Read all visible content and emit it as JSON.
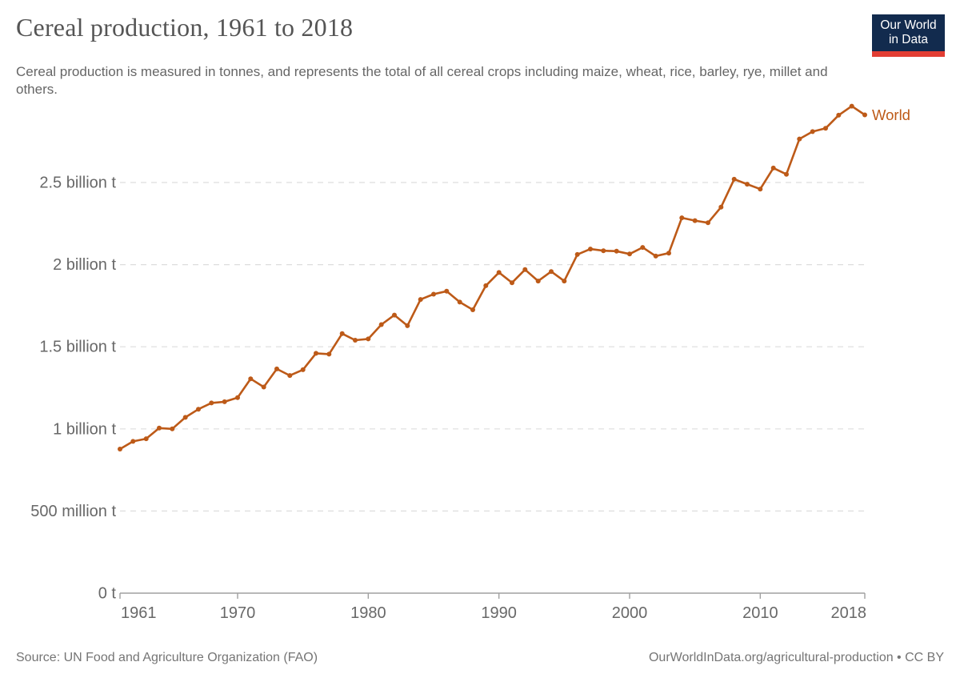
{
  "header": {
    "title": "Cereal production, 1961 to 2018",
    "subtitle": "Cereal production is measured in tonnes, and represents the total of all cereal crops including maize, wheat, rice, barley, rye, millet and others.",
    "logo": {
      "line1": "Our World",
      "line2": "in Data"
    }
  },
  "colors": {
    "line": "#bd5a18",
    "grid": "#dddddd",
    "axis": "#a0a0a0",
    "tick_label": "#686868",
    "logo_navy": "#122b4e",
    "logo_red": "#e23d33"
  },
  "chart_data": {
    "type": "line",
    "title": "Cereal production, 1961 to 2018",
    "value_unit": "million tonnes",
    "xlabel": "",
    "ylabel": "",
    "grid": true,
    "legend_position": "line-end",
    "xlim": [
      1961,
      2018
    ],
    "ylim": [
      0,
      2500
    ],
    "x_ticks": [
      1961,
      1970,
      1980,
      1990,
      2000,
      2010,
      2018
    ],
    "y_ticks": [
      {
        "value": 0,
        "label": "0 t"
      },
      {
        "value": 500,
        "label": "500 million t"
      },
      {
        "value": 1000,
        "label": "1 billion t"
      },
      {
        "value": 1500,
        "label": "1.5 billion t"
      },
      {
        "value": 2000,
        "label": "2 billion t"
      },
      {
        "value": 2500,
        "label": "2.5 billion t"
      }
    ],
    "series": [
      {
        "name": "World",
        "color": "#bd5a18",
        "x": [
          1961,
          1962,
          1963,
          1964,
          1965,
          1966,
          1967,
          1968,
          1969,
          1970,
          1971,
          1972,
          1973,
          1974,
          1975,
          1976,
          1977,
          1978,
          1979,
          1980,
          1981,
          1982,
          1983,
          1984,
          1985,
          1986,
          1987,
          1988,
          1989,
          1990,
          1991,
          1992,
          1993,
          1994,
          1995,
          1996,
          1997,
          1998,
          1999,
          2000,
          2001,
          2002,
          2003,
          2004,
          2005,
          2006,
          2007,
          2008,
          2009,
          2010,
          2011,
          2012,
          2013,
          2014,
          2015,
          2016,
          2017,
          2018
        ],
        "values": [
          877,
          924,
          940,
          1005,
          1000,
          1070,
          1120,
          1158,
          1165,
          1190,
          1305,
          1255,
          1365,
          1325,
          1360,
          1460,
          1455,
          1580,
          1540,
          1548,
          1635,
          1693,
          1628,
          1788,
          1820,
          1838,
          1772,
          1725,
          1872,
          1952,
          1890,
          1970,
          1900,
          1958,
          1900,
          2062,
          2095,
          2085,
          2082,
          2065,
          2105,
          2052,
          2070,
          2285,
          2268,
          2255,
          2350,
          2520,
          2490,
          2460,
          2588,
          2550,
          2765,
          2810,
          2830,
          2910,
          2965,
          2912
        ]
      }
    ]
  },
  "footer": {
    "source": "Source: UN Food and Agriculture Organization (FAO)",
    "license": "OurWorldInData.org/agricultural-production • CC BY"
  }
}
